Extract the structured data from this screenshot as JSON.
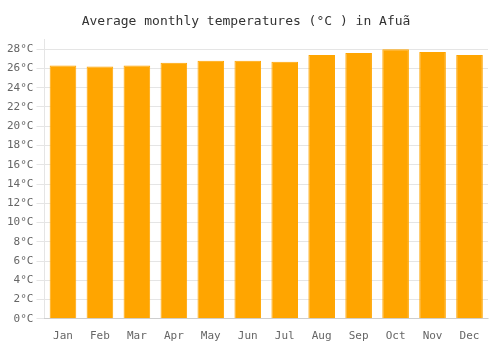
{
  "chart_data": {
    "type": "bar",
    "title": "Average monthly temperatures (°C ) in Afuã",
    "categories": [
      "Jan",
      "Feb",
      "Mar",
      "Apr",
      "May",
      "Jun",
      "Jul",
      "Aug",
      "Sep",
      "Oct",
      "Nov",
      "Dec"
    ],
    "values": [
      26.3,
      26.2,
      26.3,
      26.6,
      26.8,
      26.8,
      26.7,
      27.4,
      27.6,
      28.0,
      27.7,
      27.4
    ],
    "color": "#FFA500",
    "ylim": [
      0,
      29
    ],
    "yticks": [
      {
        "value": 0,
        "label": "0°C"
      },
      {
        "value": 2,
        "label": "2°C"
      },
      {
        "value": 4,
        "label": "4°C"
      },
      {
        "value": 6,
        "label": "6°C"
      },
      {
        "value": 8,
        "label": "8°C"
      },
      {
        "value": 10,
        "label": "10°C"
      },
      {
        "value": 12,
        "label": "12°C"
      },
      {
        "value": 14,
        "label": "14°C"
      },
      {
        "value": 16,
        "label": "16°C"
      },
      {
        "value": 18,
        "label": "18°C"
      },
      {
        "value": 20,
        "label": "20°C"
      },
      {
        "value": 22,
        "label": "22°C"
      },
      {
        "value": 24,
        "label": "24°C"
      },
      {
        "value": 26,
        "label": "26°C"
      },
      {
        "value": 28,
        "label": "28°C"
      }
    ],
    "grid": true
  }
}
